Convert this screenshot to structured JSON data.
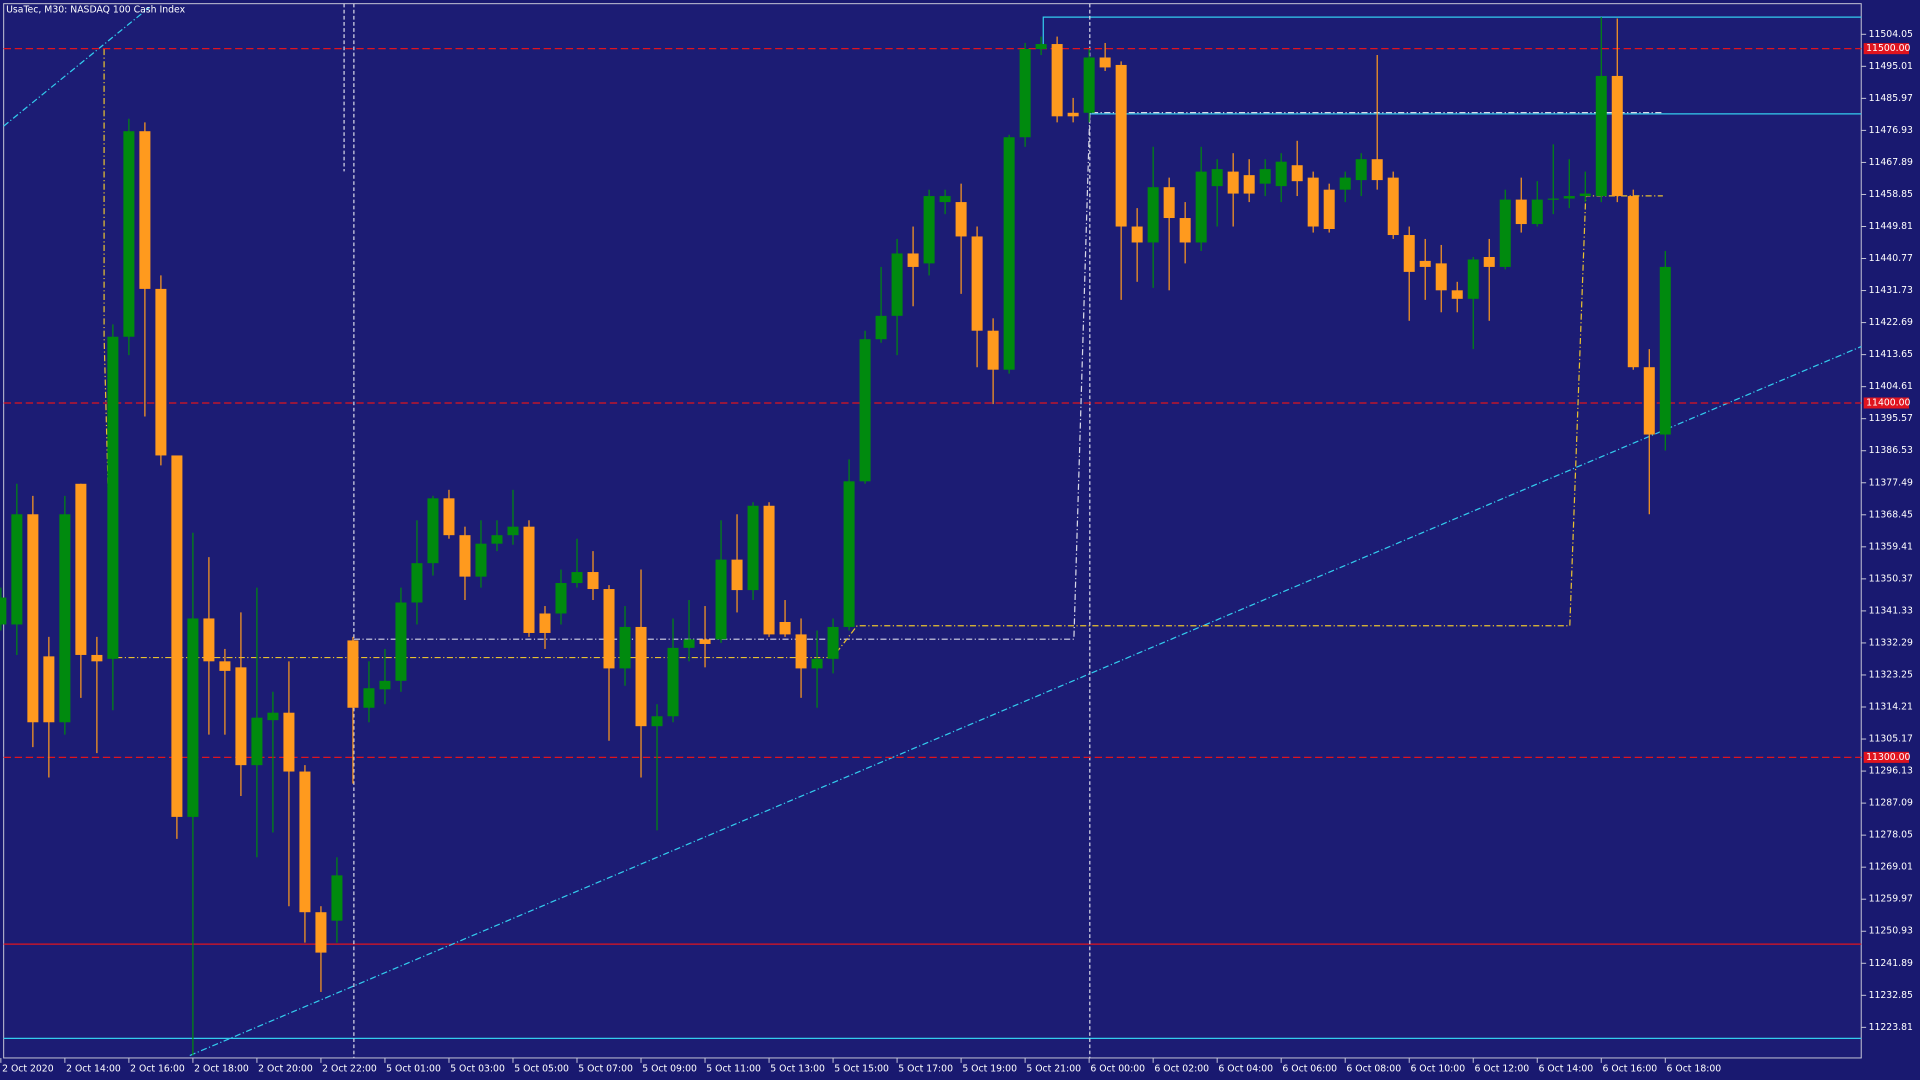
{
  "chart_data": {
    "type": "candlestick",
    "title": "UsaTec, M30:  NASDAQ 100 Cash Index",
    "up_color": "#008a0e",
    "down_color": "#ff9a1e",
    "background": "#1c1c74",
    "categories": [
      "2 Oct 2020",
      null,
      null,
      null,
      "2 Oct 14:00",
      null,
      null,
      null,
      "2 Oct 16:00",
      null,
      null,
      null,
      "2 Oct 18:00",
      null,
      null,
      null,
      "2 Oct 20:00",
      null,
      null,
      null,
      "2 Oct 22:00",
      null,
      null,
      null,
      "5 Oct 01:00",
      null,
      null,
      null,
      "5 Oct 03:00",
      null,
      null,
      null,
      "5 Oct 05:00",
      null,
      null,
      null,
      "5 Oct 07:00",
      null,
      null,
      null,
      "5 Oct 09:00",
      null,
      null,
      null,
      "5 Oct 11:00",
      null,
      null,
      null,
      "5 Oct 13:00",
      null,
      null,
      null,
      "5 Oct 15:00",
      null,
      null,
      null,
      "5 Oct 17:00",
      null,
      null,
      null,
      "5 Oct 19:00",
      null,
      null,
      null,
      "5 Oct 21:00",
      null,
      null,
      null,
      "6 Oct 00:00",
      null,
      null,
      null,
      "6 Oct 02:00",
      null,
      null,
      null,
      "6 Oct 04:00",
      null,
      null,
      null,
      "6 Oct 06:00",
      null,
      null,
      null,
      "6 Oct 08:00",
      null,
      null,
      null,
      "6 Oct 10:00",
      null,
      null,
      null,
      "6 Oct 12:00",
      null,
      null,
      null,
      "6 Oct 14:00",
      null,
      null,
      null,
      "6 Oct 16:00",
      null,
      null,
      null,
      "6 Oct 18:00"
    ],
    "ohlc": [
      [
        11337.5,
        11347.9,
        11335.8,
        11345.1
      ],
      [
        11337.5,
        11377.2,
        11328.9,
        11368.6
      ],
      [
        11368.6,
        11373.8,
        11302.9,
        11309.9
      ],
      [
        11328.5,
        11334.0,
        11294.3,
        11309.9
      ],
      [
        11309.9,
        11373.8,
        11306.4,
        11368.6
      ],
      [
        11377.2,
        11377.2,
        11316.8,
        11328.9
      ],
      [
        11328.9,
        11334.0,
        11301.2,
        11327.1
      ],
      [
        11327.8,
        11422.2,
        11313.3,
        11418.7
      ],
      [
        11418.7,
        11480.2,
        11413.5,
        11476.7
      ],
      [
        11476.7,
        11479.2,
        11396.2,
        11432.2
      ],
      [
        11432.2,
        11436.0,
        11382.4,
        11385.2
      ],
      [
        11385.2,
        11385.2,
        11277.0,
        11283.2
      ],
      [
        11283.2,
        11363.4,
        11215.9,
        11339.2
      ],
      [
        11339.2,
        11356.5,
        11306.4,
        11327.1
      ],
      [
        11327.1,
        11330.6,
        11306.4,
        11324.4
      ],
      [
        11325.4,
        11340.9,
        11289.1,
        11297.8
      ],
      [
        11297.8,
        11347.9,
        11271.8,
        11311.2
      ],
      [
        11310.5,
        11318.5,
        11278.8,
        11312.6
      ],
      [
        11312.6,
        11327.1,
        11258.0,
        11296.0
      ],
      [
        11296.0,
        11297.8,
        11247.7,
        11256.3
      ],
      [
        11256.3,
        11258.0,
        11233.8,
        11244.9
      ],
      [
        11253.9,
        11271.8,
        11247.7,
        11266.7
      ],
      [
        11333.0,
        11334.0,
        11292.6,
        11314.0
      ],
      [
        11314.0,
        11327.1,
        11309.9,
        11319.5
      ],
      [
        11319.2,
        11330.6,
        11315.0,
        11321.6
      ],
      [
        11321.6,
        11347.9,
        11318.5,
        11343.7
      ],
      [
        11343.7,
        11366.9,
        11337.5,
        11354.8
      ],
      [
        11354.8,
        11373.8,
        11351.3,
        11373.1
      ],
      [
        11373.1,
        11375.5,
        11361.7,
        11362.7
      ],
      [
        11362.7,
        11365.1,
        11344.4,
        11351.0
      ],
      [
        11351.0,
        11366.9,
        11347.9,
        11360.3
      ],
      [
        11360.3,
        11366.9,
        11358.2,
        11362.7
      ],
      [
        11362.7,
        11375.5,
        11360.0,
        11365.1
      ],
      [
        11365.1,
        11366.9,
        11334.0,
        11335.1
      ],
      [
        11340.6,
        11342.7,
        11330.6,
        11335.1
      ],
      [
        11340.6,
        11353.0,
        11337.5,
        11349.2
      ],
      [
        11349.2,
        11361.7,
        11347.9,
        11352.3
      ],
      [
        11352.3,
        11358.2,
        11344.4,
        11347.5
      ],
      [
        11347.5,
        11348.6,
        11304.7,
        11325.1
      ],
      [
        11325.1,
        11342.7,
        11320.2,
        11336.8
      ],
      [
        11336.8,
        11353.0,
        11294.3,
        11308.8
      ],
      [
        11308.8,
        11315.0,
        11279.4,
        11311.6
      ],
      [
        11311.6,
        11339.2,
        11309.9,
        11330.9
      ],
      [
        11330.9,
        11344.4,
        11327.1,
        11333.3
      ],
      [
        11333.3,
        11342.7,
        11325.4,
        11332.0
      ],
      [
        11333.3,
        11366.9,
        11332.3,
        11355.8
      ],
      [
        11355.8,
        11368.6,
        11340.9,
        11347.2
      ],
      [
        11347.2,
        11372.0,
        11344.4,
        11371.0
      ],
      [
        11371.0,
        11372.0,
        11334.0,
        11334.7
      ],
      [
        11338.2,
        11344.4,
        11334.0,
        11334.7
      ],
      [
        11334.7,
        11339.2,
        11316.8,
        11325.1
      ],
      [
        11325.1,
        11335.8,
        11314.0,
        11327.8
      ],
      [
        11327.8,
        11339.2,
        11323.7,
        11336.8
      ],
      [
        11336.8,
        11384.1,
        11335.8,
        11377.9
      ],
      [
        11377.9,
        11420.4,
        11377.2,
        11418.0
      ],
      [
        11418.0,
        11438.4,
        11417.0,
        11424.6
      ],
      [
        11424.6,
        11446.3,
        11413.5,
        11442.2
      ],
      [
        11442.2,
        11449.8,
        11427.3,
        11438.4
      ],
      [
        11439.4,
        11460.2,
        11436.0,
        11458.4
      ],
      [
        11456.7,
        11460.2,
        11453.3,
        11458.4
      ],
      [
        11456.7,
        11461.9,
        11430.8,
        11447.0
      ],
      [
        11447.0,
        11449.8,
        11410.1,
        11420.4
      ],
      [
        11420.4,
        11423.9,
        11399.7,
        11409.4
      ],
      [
        11409.4,
        11475.7,
        11408.3,
        11475.0
      ],
      [
        11475.0,
        11501.6,
        11472.3,
        11499.9
      ],
      [
        11499.9,
        11503.4,
        11498.2,
        11501.3
      ],
      [
        11501.3,
        11503.4,
        11479.2,
        11480.9
      ],
      [
        11481.9,
        11486.1,
        11479.2,
        11480.9
      ],
      [
        11481.9,
        11499.9,
        11479.2,
        11497.5
      ],
      [
        11497.5,
        11501.6,
        11493.7,
        11494.7
      ],
      [
        11495.4,
        11496.4,
        11429.1,
        11449.8
      ],
      [
        11449.8,
        11455.0,
        11434.2,
        11445.3
      ],
      [
        11445.3,
        11472.3,
        11432.5,
        11460.9
      ],
      [
        11460.9,
        11463.6,
        11431.8,
        11452.2
      ],
      [
        11452.2,
        11456.7,
        11439.4,
        11445.3
      ],
      [
        11445.3,
        11472.3,
        11442.9,
        11465.3
      ],
      [
        11461.2,
        11468.8,
        11449.8,
        11466.0
      ],
      [
        11465.3,
        11470.5,
        11449.8,
        11459.1
      ],
      [
        11464.3,
        11468.8,
        11456.7,
        11459.1
      ],
      [
        11461.9,
        11468.8,
        11458.4,
        11466.0
      ],
      [
        11461.2,
        11470.5,
        11456.7,
        11468.1
      ],
      [
        11467.1,
        11474.0,
        11458.4,
        11462.6
      ],
      [
        11463.6,
        11465.3,
        11448.1,
        11449.8
      ],
      [
        11460.2,
        11461.9,
        11448.1,
        11449.1
      ],
      [
        11460.2,
        11465.3,
        11456.7,
        11463.6
      ],
      [
        11462.9,
        11470.5,
        11458.4,
        11468.8
      ],
      [
        11468.8,
        11498.2,
        11460.2,
        11462.9
      ],
      [
        11463.6,
        11465.3,
        11446.3,
        11447.4
      ],
      [
        11447.4,
        11449.8,
        11423.2,
        11437.0
      ],
      [
        11440.1,
        11446.3,
        11429.1,
        11438.4
      ],
      [
        11439.4,
        11444.6,
        11425.6,
        11431.8
      ],
      [
        11431.8,
        11434.2,
        11425.6,
        11429.4
      ],
      [
        11429.4,
        11441.2,
        11415.2,
        11440.5
      ],
      [
        11441.2,
        11446.3,
        11423.2,
        11438.4
      ],
      [
        11438.4,
        11460.2,
        11437.7,
        11457.4
      ],
      [
        11457.4,
        11463.6,
        11448.1,
        11450.5
      ],
      [
        11450.5,
        11462.6,
        11449.8,
        11457.4
      ],
      [
        11457.4,
        11473.0,
        11453.3,
        11457.7
      ],
      [
        11457.7,
        11468.8,
        11455.0,
        11458.4
      ],
      [
        11458.4,
        11465.3,
        11456.7,
        11459.1
      ],
      [
        11458.4,
        11508.9,
        11456.7,
        11492.3
      ],
      [
        11492.3,
        11508.5,
        11456.7,
        11458.4
      ],
      [
        11458.4,
        11460.2,
        11409.4,
        11410.1
      ],
      [
        11410.1,
        11415.2,
        11368.6,
        11391.1
      ],
      [
        11391.1,
        11442.9,
        11386.6,
        11438.4
      ]
    ],
    "ylim": [
      11215.17,
      11512.69
    ],
    "yticks": [
      11504.05,
      11495.01,
      11485.97,
      11476.93,
      11467.89,
      11458.85,
      11449.81,
      11440.77,
      11431.73,
      11422.69,
      11413.65,
      11404.61,
      11395.57,
      11386.53,
      11377.49,
      11368.45,
      11359.41,
      11350.37,
      11341.33,
      11332.29,
      11323.25,
      11314.21,
      11305.17,
      11296.13,
      11287.09,
      11278.05,
      11269.01,
      11259.97,
      11250.93,
      11241.89,
      11232.85,
      11223.81
    ],
    "levels": [
      {
        "value": 11500,
        "label": "11500.00",
        "color": "#e0141e"
      },
      {
        "value": 11400,
        "label": "11400.00",
        "color": "#e0141e"
      },
      {
        "value": 11300,
        "label": "11300.00",
        "color": "#e0141e"
      }
    ]
  }
}
